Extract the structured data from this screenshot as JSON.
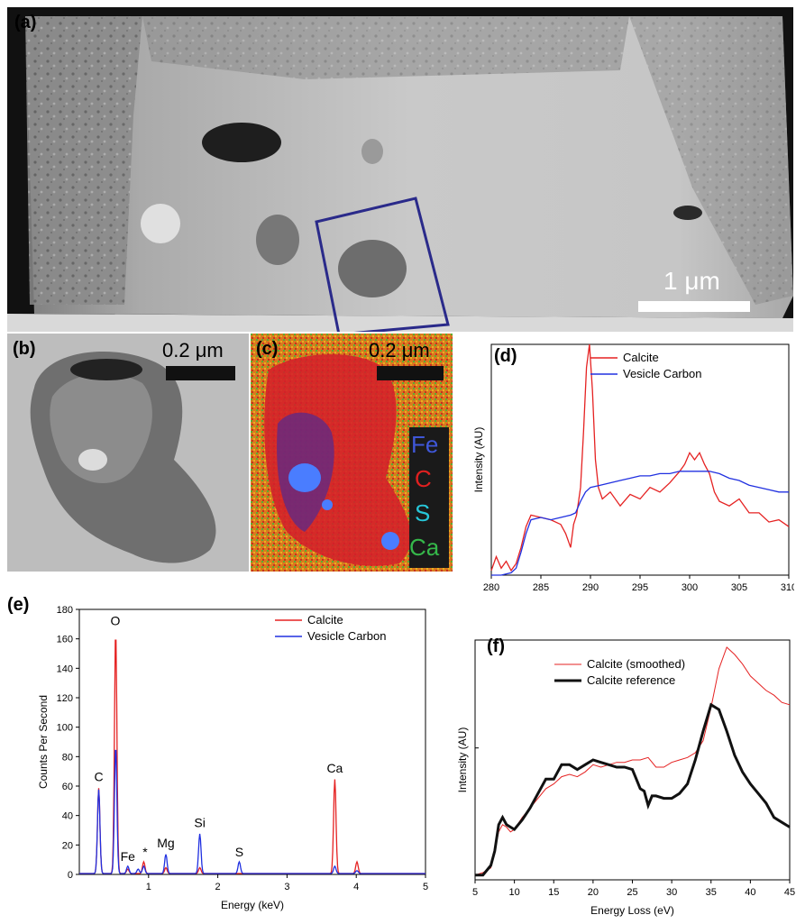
{
  "panels": {
    "a": {
      "label": "(a)",
      "scale_text": "1 μm"
    },
    "b": {
      "label": "(b)",
      "scale_text": "0.2 μm"
    },
    "c": {
      "label": "(c)",
      "scale_text": "0.2 μm",
      "legend": [
        {
          "text": "Fe",
          "color": "#3f57d8"
        },
        {
          "text": "C",
          "color": "#e02020"
        },
        {
          "text": "S",
          "color": "#27c6d8"
        },
        {
          "text": "Ca",
          "color": "#35b84a"
        }
      ]
    },
    "d": {
      "label": "(d)"
    },
    "e": {
      "label": "(e)"
    },
    "f": {
      "label": "(f)"
    }
  },
  "chart_data": [
    {
      "id": "d",
      "type": "line",
      "xlabel": "Energy Loss (eV)",
      "ylabel": "Intensity (AU)",
      "xlim": [
        280,
        310
      ],
      "ylim": [
        0,
        1
      ],
      "xticks": [
        280,
        285,
        290,
        295,
        300,
        305,
        310
      ],
      "legend_position": "top-right",
      "series": [
        {
          "name": "Calcite",
          "color": "#e52222",
          "x": [
            280,
            280.5,
            281,
            281.5,
            282,
            282.5,
            283,
            283.5,
            284,
            285,
            286,
            287,
            287.5,
            288,
            288.3,
            288.6,
            289,
            289.3,
            289.6,
            289.9,
            290.2,
            290.5,
            290.8,
            291.2,
            292,
            293,
            294,
            295,
            296,
            297,
            298,
            299,
            299.5,
            300,
            300.5,
            301,
            301.5,
            302,
            302.5,
            303,
            304,
            305,
            306,
            307,
            308,
            309,
            310
          ],
          "y": [
            0.02,
            0.08,
            0.03,
            0.06,
            0.02,
            0.05,
            0.12,
            0.21,
            0.26,
            0.25,
            0.24,
            0.22,
            0.18,
            0.12,
            0.22,
            0.26,
            0.38,
            0.62,
            0.9,
            1.0,
            0.8,
            0.5,
            0.38,
            0.33,
            0.36,
            0.3,
            0.35,
            0.33,
            0.38,
            0.36,
            0.4,
            0.45,
            0.48,
            0.53,
            0.5,
            0.53,
            0.48,
            0.44,
            0.36,
            0.32,
            0.3,
            0.33,
            0.27,
            0.27,
            0.23,
            0.24,
            0.21
          ]
        },
        {
          "name": "Vesicle Carbon",
          "color": "#2030e0",
          "x": [
            280,
            281,
            282,
            282.5,
            283,
            283.5,
            284,
            285,
            286,
            287,
            288,
            288.5,
            289,
            289.5,
            290,
            291,
            292,
            293,
            294,
            295,
            296,
            297,
            298,
            299,
            300,
            301,
            302,
            303,
            304,
            305,
            306,
            307,
            308,
            309,
            310
          ],
          "y": [
            0.0,
            0.0,
            0.01,
            0.03,
            0.1,
            0.18,
            0.24,
            0.25,
            0.24,
            0.25,
            0.26,
            0.27,
            0.32,
            0.36,
            0.38,
            0.39,
            0.4,
            0.41,
            0.42,
            0.43,
            0.43,
            0.44,
            0.44,
            0.45,
            0.45,
            0.45,
            0.45,
            0.44,
            0.42,
            0.41,
            0.39,
            0.38,
            0.37,
            0.36,
            0.36
          ]
        }
      ]
    },
    {
      "id": "e",
      "type": "line",
      "xlabel": "Energy (keV)",
      "ylabel": "Counts Per Second",
      "xlim": [
        0,
        5
      ],
      "ylim": [
        0,
        180
      ],
      "xticks": [
        1,
        2,
        3,
        4,
        5
      ],
      "yticks": [
        0,
        20,
        40,
        60,
        80,
        100,
        120,
        140,
        160,
        180
      ],
      "legend_position": "top-right",
      "annotations": [
        {
          "text": "C",
          "x": 0.28,
          "y": 62
        },
        {
          "text": "O",
          "x": 0.52,
          "y": 168
        },
        {
          "text": "Fe",
          "x": 0.7,
          "y": 8
        },
        {
          "text": "*",
          "x": 0.95,
          "y": 11
        },
        {
          "text": "Mg",
          "x": 1.25,
          "y": 17
        },
        {
          "text": "Si",
          "x": 1.74,
          "y": 31
        },
        {
          "text": "S",
          "x": 2.31,
          "y": 11
        },
        {
          "text": "Ca",
          "x": 3.69,
          "y": 68
        }
      ],
      "series": [
        {
          "name": "Calcite",
          "color": "#e52222",
          "peaks": [
            {
              "x": 0.28,
              "y": 58
            },
            {
              "x": 0.525,
              "y": 165
            },
            {
              "x": 0.7,
              "y": 3
            },
            {
              "x": 0.93,
              "y": 8
            },
            {
              "x": 1.25,
              "y": 4
            },
            {
              "x": 1.74,
              "y": 4
            },
            {
              "x": 3.69,
              "y": 64
            },
            {
              "x": 4.01,
              "y": 8
            }
          ]
        },
        {
          "name": "Vesicle Carbon",
          "color": "#2030e0",
          "peaks": [
            {
              "x": 0.28,
              "y": 57
            },
            {
              "x": 0.525,
              "y": 87
            },
            {
              "x": 0.7,
              "y": 5
            },
            {
              "x": 0.85,
              "y": 3
            },
            {
              "x": 0.93,
              "y": 5
            },
            {
              "x": 1.25,
              "y": 13
            },
            {
              "x": 1.74,
              "y": 27
            },
            {
              "x": 2.31,
              "y": 8
            },
            {
              "x": 3.69,
              "y": 5
            },
            {
              "x": 4.01,
              "y": 2
            }
          ]
        }
      ]
    },
    {
      "id": "f",
      "type": "line",
      "xlabel": "Energy Loss (eV)",
      "ylabel": "Intensity (AU)",
      "xlim": [
        5,
        45
      ],
      "ylim": [
        0,
        1
      ],
      "xticks": [
        5,
        10,
        15,
        20,
        25,
        30,
        35,
        40,
        45
      ],
      "legend_position": "top-left",
      "series": [
        {
          "name": "Calcite (smoothed)",
          "color": "#e52222",
          "width": 1,
          "x": [
            5,
            6,
            7,
            7.5,
            8,
            8.5,
            9,
            9.5,
            10,
            11,
            12,
            13,
            14,
            15,
            16,
            17,
            18,
            19,
            20,
            21,
            22,
            23,
            24,
            25,
            26,
            27,
            28,
            29,
            30,
            31,
            32,
            33,
            34,
            35,
            36,
            37,
            38,
            39,
            40,
            41,
            42,
            43,
            44,
            45
          ],
          "y": [
            0.02,
            0.03,
            0.05,
            0.12,
            0.2,
            0.23,
            0.22,
            0.2,
            0.21,
            0.26,
            0.3,
            0.34,
            0.38,
            0.4,
            0.43,
            0.44,
            0.43,
            0.45,
            0.48,
            0.47,
            0.48,
            0.49,
            0.49,
            0.5,
            0.5,
            0.51,
            0.47,
            0.47,
            0.49,
            0.5,
            0.51,
            0.53,
            0.58,
            0.72,
            0.88,
            0.97,
            0.94,
            0.9,
            0.85,
            0.82,
            0.79,
            0.77,
            0.74,
            0.73
          ]
        },
        {
          "name": "Calcite reference",
          "color": "#111111",
          "width": 3,
          "x": [
            5,
            6,
            7,
            7.5,
            8,
            8.5,
            9,
            9.5,
            10,
            11,
            12,
            13,
            14,
            15,
            16,
            17,
            18,
            19,
            20,
            21,
            22,
            23,
            24,
            25,
            25.5,
            26,
            26.5,
            27,
            27.5,
            28,
            29,
            30,
            31,
            32,
            33,
            34,
            35,
            36,
            37,
            38,
            39,
            40,
            41,
            42,
            43,
            44,
            45
          ],
          "y": [
            0.02,
            0.02,
            0.06,
            0.12,
            0.23,
            0.26,
            0.23,
            0.22,
            0.21,
            0.25,
            0.3,
            0.36,
            0.42,
            0.42,
            0.48,
            0.48,
            0.46,
            0.48,
            0.5,
            0.49,
            0.48,
            0.47,
            0.47,
            0.46,
            0.42,
            0.38,
            0.37,
            0.31,
            0.35,
            0.35,
            0.34,
            0.34,
            0.36,
            0.4,
            0.5,
            0.62,
            0.73,
            0.71,
            0.62,
            0.52,
            0.45,
            0.4,
            0.36,
            0.32,
            0.26,
            0.24,
            0.22
          ]
        }
      ]
    }
  ]
}
